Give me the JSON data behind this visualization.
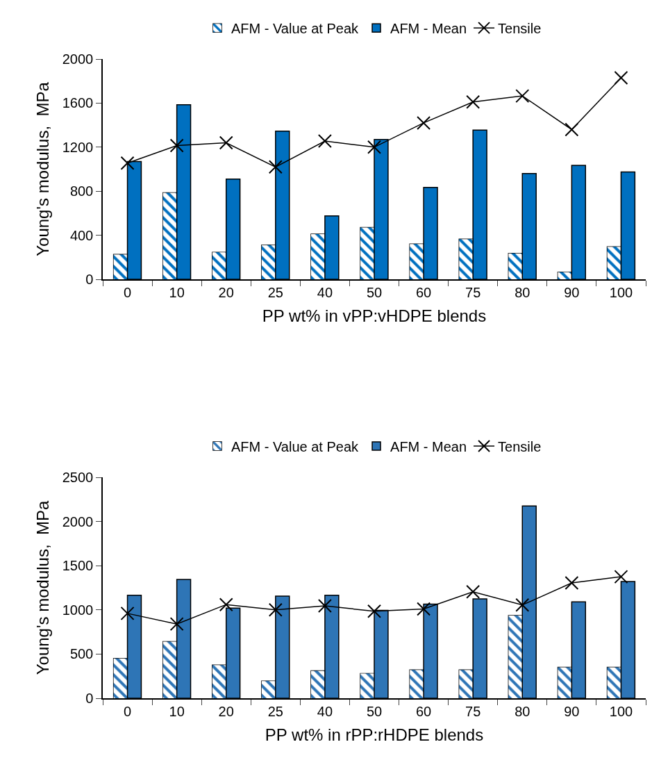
{
  "chart_data": [
    {
      "type": "bar",
      "xlabel": "PP wt% in vPP:vHDPE blends",
      "ylabel": "Young's modulus,  MPa",
      "categories": [
        "0",
        "10",
        "20",
        "25",
        "40",
        "50",
        "60",
        "75",
        "80",
        "90",
        "100"
      ],
      "ylim": [
        0,
        2000
      ],
      "yticks": [
        0,
        400,
        800,
        1200,
        1600,
        2000
      ],
      "grid": false,
      "legend": "top",
      "marker": "cross",
      "series": [
        {
          "name": "AFM - Value at Peak",
          "color": "#0070c0",
          "values": [
            225,
            785,
            245,
            310,
            410,
            470,
            320,
            365,
            235,
            65,
            295
          ]
        },
        {
          "name": "AFM - Mean",
          "color": "#0070c0",
          "values": [
            1070,
            1585,
            910,
            1345,
            575,
            1270,
            835,
            1355,
            960,
            1035,
            975
          ]
        },
        {
          "name": "Tensile",
          "type": "line",
          "color": "#000000",
          "values": [
            1055,
            1215,
            1240,
            1020,
            1255,
            1200,
            1420,
            1610,
            1665,
            1360,
            1830
          ]
        }
      ]
    },
    {
      "type": "bar",
      "xlabel": "PP wt% in rPP:rHDPE blends",
      "ylabel": "Young's modulus,  MPa",
      "categories": [
        "0",
        "10",
        "20",
        "25",
        "40",
        "50",
        "60",
        "75",
        "80",
        "90",
        "100"
      ],
      "ylim": [
        0,
        2500
      ],
      "yticks": [
        0,
        500,
        1000,
        1500,
        2000,
        2500
      ],
      "grid": false,
      "legend": "top",
      "marker": "cross",
      "series": [
        {
          "name": "AFM - Value at Peak",
          "color": "#2e75b6",
          "values": [
            450,
            640,
            375,
            195,
            310,
            280,
            320,
            320,
            935,
            350,
            350
          ]
        },
        {
          "name": "AFM - Mean",
          "color": "#2e75b6",
          "values": [
            1165,
            1345,
            1020,
            1155,
            1165,
            995,
            1065,
            1125,
            2175,
            1090,
            1320
          ]
        },
        {
          "name": "Tensile",
          "type": "line",
          "color": "#000000",
          "values": [
            960,
            840,
            1060,
            1000,
            1045,
            985,
            1010,
            1205,
            1055,
            1305,
            1375
          ]
        }
      ]
    }
  ]
}
